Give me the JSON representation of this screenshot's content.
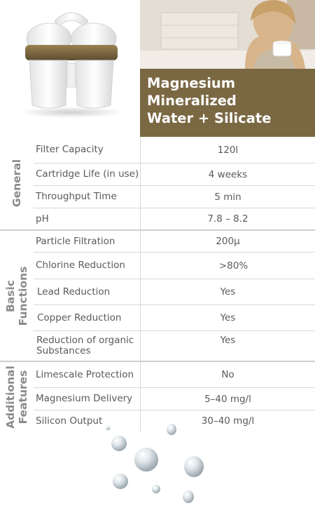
{
  "product": {
    "title_lines": [
      "Magnesium",
      "Mineralized",
      "Water + Silicate"
    ]
  },
  "colors": {
    "accent_brown": "#7a6843",
    "text_gray": "#5a5a5a",
    "section_gray": "#8a8a8a",
    "divider": "#d7d7d7"
  },
  "sections": [
    {
      "name": "General",
      "rows": [
        {
          "label": "Filter Capacity",
          "value": "120l"
        },
        {
          "label": "Cartridge Life (in use)",
          "value": "4 weeks"
        },
        {
          "label": "Throughput Time",
          "value": "5 min"
        },
        {
          "label": "pH",
          "value": "7.8 – 8.2"
        }
      ]
    },
    {
      "name_lines": [
        "Basic",
        "Functions"
      ],
      "rows": [
        {
          "label": "Particle Filtration",
          "value": "200µ"
        },
        {
          "label": "Chlorine Reduction",
          "value": ">80%"
        },
        {
          "label": "Lead Reduction",
          "value": "Yes"
        },
        {
          "label": "Copper Reduction",
          "value": "Yes"
        },
        {
          "label_lines": [
            "Reduction of organic",
            "Substances"
          ],
          "value": "Yes"
        }
      ]
    },
    {
      "name_lines": [
        "Additional",
        "Features"
      ],
      "rows": [
        {
          "label": "Limescale Protection",
          "value": "No"
        },
        {
          "label": "Magnesium Delivery",
          "value": "5–40 mg/l"
        },
        {
          "label": "Silicon Output",
          "value": "30–40 mg/l"
        }
      ]
    }
  ]
}
